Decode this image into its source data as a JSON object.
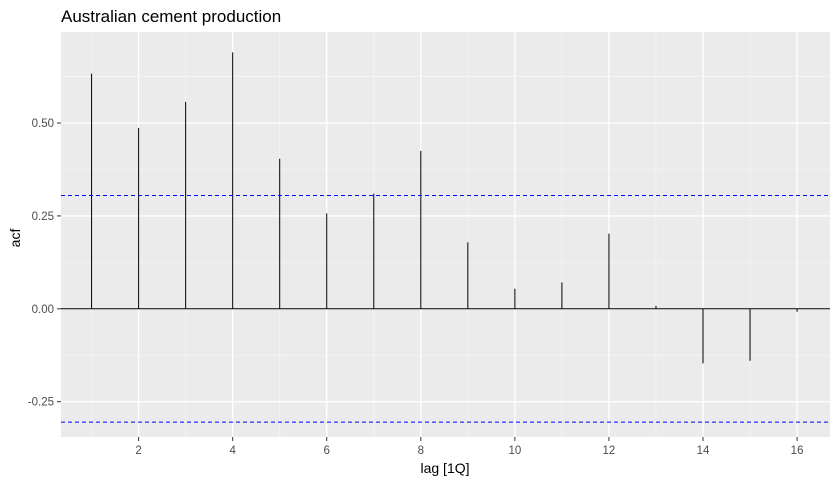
{
  "chart_data": {
    "type": "bar",
    "title": "Australian cement production",
    "xlabel": "lag [1Q]",
    "ylabel": "acf",
    "x": [
      1,
      2,
      3,
      4,
      5,
      6,
      7,
      8,
      9,
      10,
      11,
      12,
      13,
      14,
      15,
      16
    ],
    "values": [
      0.633,
      0.487,
      0.557,
      0.69,
      0.404,
      0.257,
      0.31,
      0.425,
      0.179,
      0.054,
      0.071,
      0.202,
      0.008,
      -0.147,
      -0.14,
      -0.008
    ],
    "confidence_bounds": [
      0.305,
      -0.305
    ],
    "xlim": [
      0.35,
      16.7
    ],
    "ylim": [
      -0.345,
      0.745
    ],
    "x_ticks": [
      2,
      4,
      6,
      8,
      10,
      12,
      14,
      16
    ],
    "x_tick_labels": [
      "2",
      "4",
      "6",
      "8",
      "10",
      "12",
      "14",
      "16"
    ],
    "y_ticks": [
      -0.25,
      0,
      0.25,
      0.5
    ],
    "y_tick_labels": [
      "-0.25",
      "0.00",
      "0.25",
      "0.50"
    ],
    "grid": true,
    "colors": {
      "panel_background": "#ebebeb",
      "grid_major": "#ffffff",
      "grid_minor": "#f5f5f5",
      "bars": "#000000",
      "bounds": "#0000ff"
    }
  }
}
